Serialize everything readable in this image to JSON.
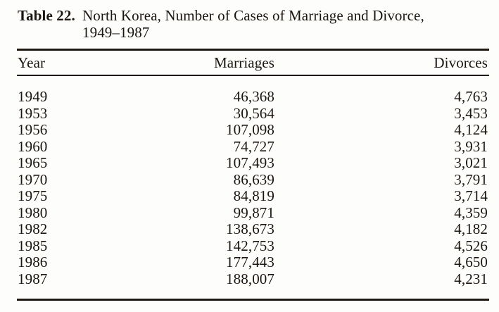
{
  "caption": {
    "label": "Table 22.",
    "title_line1": "North Korea, Number of Cases of Marriage and Divorce,",
    "title_line2": "1949–1987"
  },
  "chart_data": {
    "type": "table",
    "title": "Table 22. North Korea, Number of Cases of Marriage and Divorce, 1949–1987",
    "columns": [
      "Year",
      "Marriages",
      "Divorces"
    ],
    "rows": [
      [
        "1949",
        "46,368",
        "4,763"
      ],
      [
        "1953",
        "30,564",
        "3,453"
      ],
      [
        "1956",
        "107,098",
        "4,124"
      ],
      [
        "1960",
        "74,727",
        "3,931"
      ],
      [
        "1965",
        "107,493",
        "3,021"
      ],
      [
        "1970",
        "86,639",
        "3,791"
      ],
      [
        "1975",
        "84,819",
        "3,714"
      ],
      [
        "1980",
        "99,871",
        "4,359"
      ],
      [
        "1982",
        "138,673",
        "4,182"
      ],
      [
        "1985",
        "142,753",
        "4,526"
      ],
      [
        "1986",
        "177,443",
        "4,650"
      ],
      [
        "1987",
        "188,007",
        "4,231"
      ]
    ],
    "series": [
      {
        "name": "Marriages",
        "x": [
          1949,
          1953,
          1956,
          1960,
          1965,
          1970,
          1975,
          1980,
          1982,
          1985,
          1986,
          1987
        ],
        "values": [
          46368,
          30564,
          107098,
          74727,
          107493,
          86639,
          84819,
          99871,
          138673,
          142753,
          177443,
          188007
        ]
      },
      {
        "name": "Divorces",
        "x": [
          1949,
          1953,
          1956,
          1960,
          1965,
          1970,
          1975,
          1980,
          1982,
          1985,
          1986,
          1987
        ],
        "values": [
          4763,
          3453,
          4124,
          3931,
          3021,
          3791,
          3714,
          4359,
          4182,
          4526,
          4650,
          4231
        ]
      }
    ],
    "ink_color": "#1d1812",
    "background": "#fdfdfb"
  }
}
